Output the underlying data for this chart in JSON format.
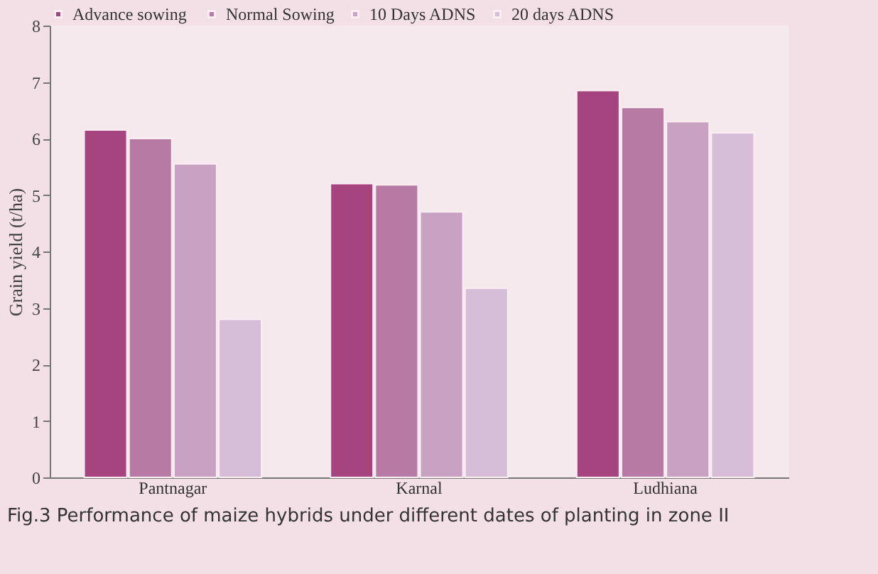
{
  "chart_data": {
    "type": "bar",
    "title": "Fig.3 Performance of maize hybrids under different dates of planting in zone II",
    "ylabel": "Grain yield (t/ha)",
    "categories": [
      "Pantnagar",
      "Karnal",
      "Ludhiana"
    ],
    "series": [
      {
        "name": "Advance  sowing",
        "color": "#a5447f",
        "values": [
          6.15,
          5.2,
          6.85
        ]
      },
      {
        "name": "Normal Sowing",
        "color": "#b77aa5",
        "values": [
          6.0,
          5.18,
          6.55
        ]
      },
      {
        "name": "10 Days ADNS",
        "color": "#c9a2c3",
        "values": [
          5.55,
          4.7,
          6.3
        ]
      },
      {
        "name": "20 days ADNS",
        "color": "#d6bed8",
        "values": [
          2.8,
          3.35,
          6.1
        ]
      }
    ],
    "ylim": [
      0,
      8
    ],
    "yticks": [
      0,
      1,
      2,
      3,
      4,
      5,
      6,
      7,
      8
    ],
    "legend": "top",
    "grid": false
  }
}
